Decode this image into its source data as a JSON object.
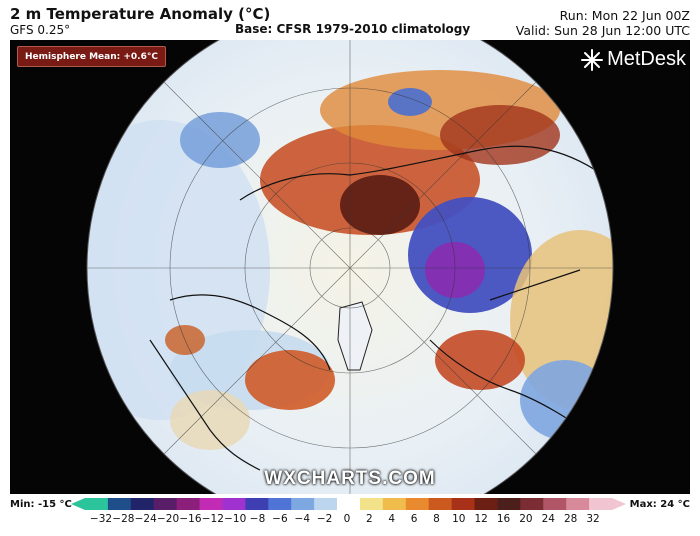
{
  "header": {
    "title": "2 m Temperature Anomaly (°C)",
    "model": "GFS 0.25°",
    "base": "Base: CFSR 1979-2010 climatology",
    "run": "Run: Mon 22 Jun 00Z",
    "valid": "Valid: Sun 28 Jun 12:00 UTC"
  },
  "map": {
    "hemisphere_mean": "Hemisphere Mean: +0.6°C",
    "brand": "MetDesk",
    "watermark": "WXCHARTS.COM",
    "background": "#050505"
  },
  "legend": {
    "min_label": "Min: -15 °C",
    "max_label": "Max: 24 °C",
    "ticks": [
      "−32",
      "−28",
      "−24",
      "−20",
      "−16",
      "−12",
      "−10",
      "−8",
      "−6",
      "−4",
      "−2",
      "0",
      "2",
      "4",
      "6",
      "8",
      "10",
      "12",
      "16",
      "20",
      "24",
      "28",
      "32"
    ],
    "colors": [
      "#2bc49b",
      "#1f4f8a",
      "#22246a",
      "#5a1d68",
      "#8b1f7a",
      "#c22bb3",
      "#a033d0",
      "#3d3fb3",
      "#4f74d6",
      "#7da8e2",
      "#bcd6ef",
      "#ffffff",
      "#f3e28a",
      "#f0bd4c",
      "#e88a2d",
      "#cc5a1e",
      "#a8311a",
      "#6c1f13",
      "#4c1f1c",
      "#7c2d33",
      "#b15667",
      "#d98a9a",
      "#f1c5d1"
    ]
  }
}
